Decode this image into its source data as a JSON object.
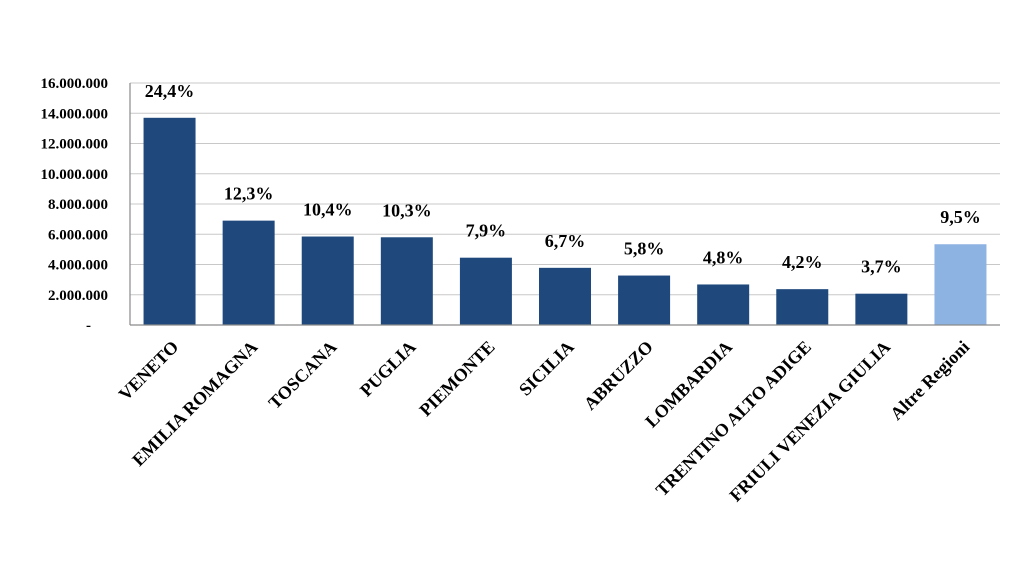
{
  "chart_data": {
    "type": "bar",
    "categories": [
      "VENETO",
      "EMILIA ROMAGNA",
      "TOSCANA",
      "PUGLIA",
      "PIEMONTE",
      "SICILIA",
      "ABRUZZO",
      "LOMBARDIA",
      "TRENTINO ALTO ADIGE",
      "FRIULI VENEZIA GIULIA",
      "Altre Regioni"
    ],
    "values": [
      13700000,
      6900000,
      5850000,
      5800000,
      4450000,
      3780000,
      3270000,
      2680000,
      2370000,
      2070000,
      5340000
    ],
    "data_labels": [
      "24,4%",
      "12,3%",
      "10,4%",
      "10,3%",
      "7,9%",
      "6,7%",
      "5,8%",
      "4,8%",
      "4,2%",
      "3,7%",
      "9,5%"
    ],
    "y_ticks": [
      0,
      2000000,
      4000000,
      6000000,
      8000000,
      10000000,
      12000000,
      14000000,
      16000000
    ],
    "y_tick_labels": [
      "-",
      "2.000.000",
      "4.000.000",
      "6.000.000",
      "8.000.000",
      "10.000.000",
      "12.000.000",
      "14.000.000",
      "16.000.000"
    ],
    "ylim": [
      0,
      16000000
    ],
    "grid": true,
    "legend": "none",
    "colors": {
      "bar": "#1f497d",
      "highlight_bar": "#8db3e2",
      "grid": "#c8c8c8",
      "axis": "#8a8a8a"
    },
    "highlight_index": 10
  }
}
